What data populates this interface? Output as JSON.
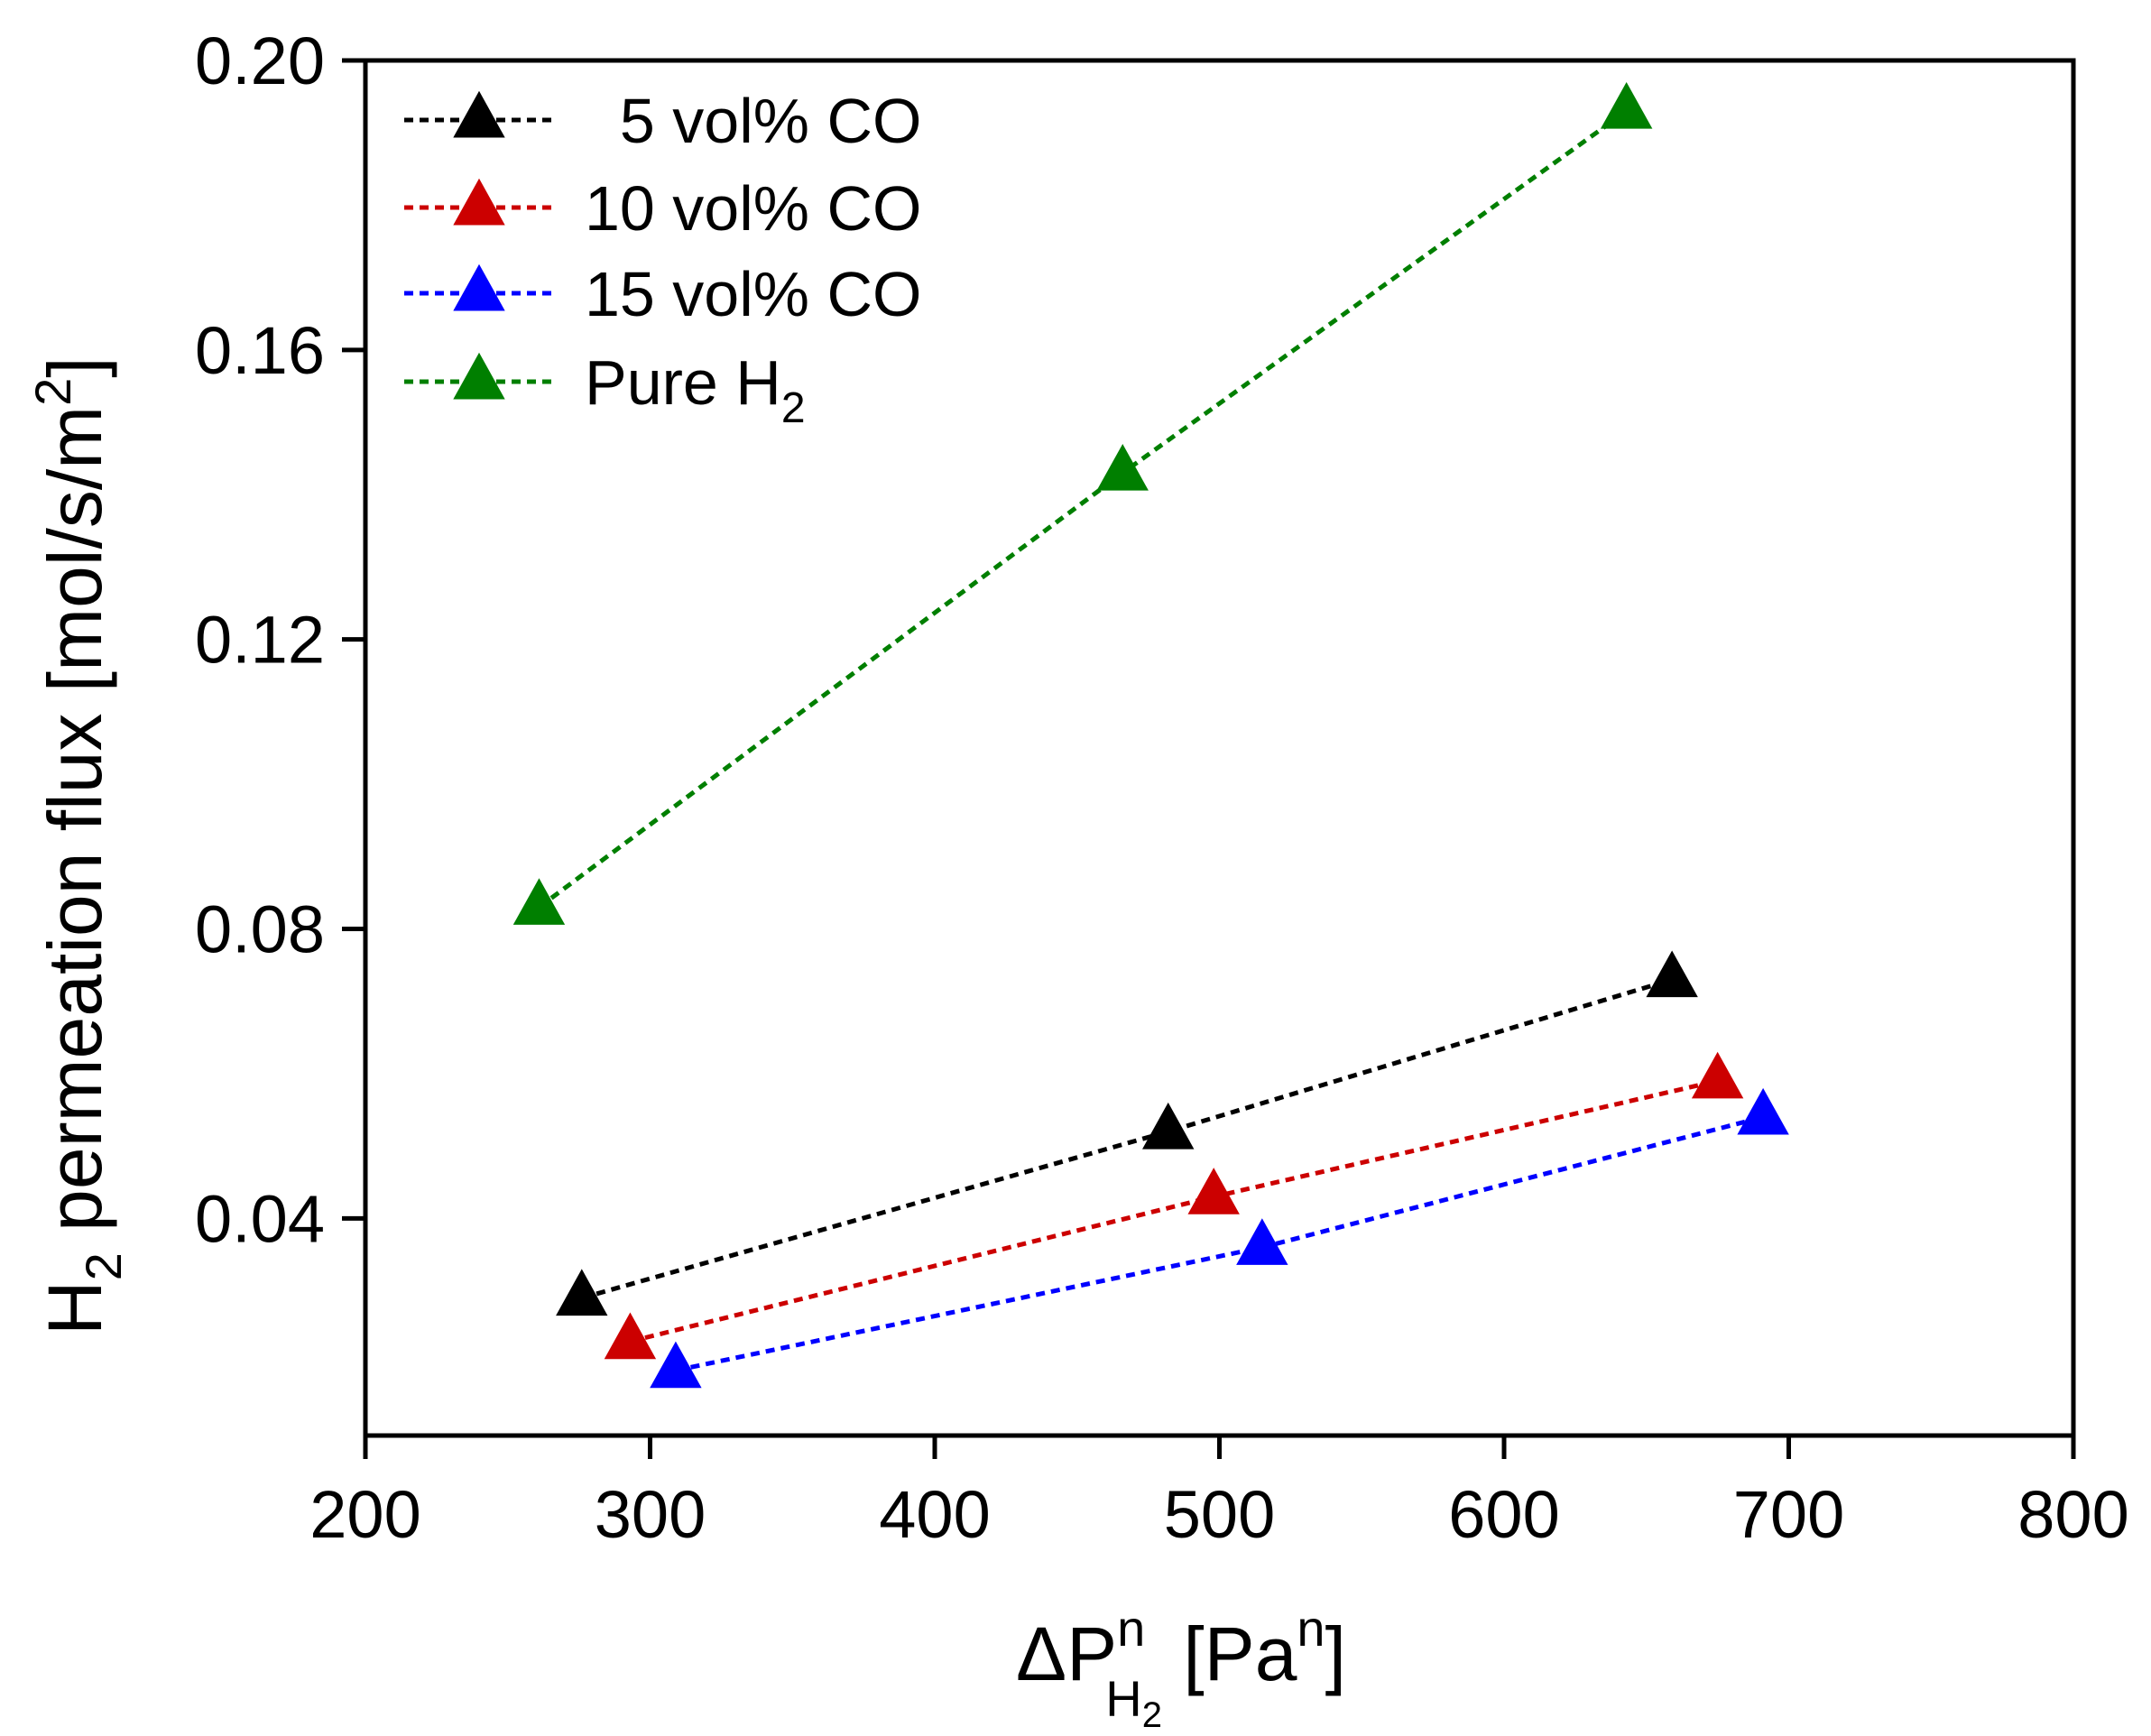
{
  "chart_data": {
    "type": "line",
    "title": "",
    "xlabel": {
      "prefix": "ΔP",
      "sup": "n",
      "sub": "H",
      "sub_sub": "2",
      "unit_open": " [Pa",
      "unit_sup": "n",
      "unit_close": "]"
    },
    "ylabel": {
      "prefix": "H",
      "sub": "2",
      "main": " permeation flux [mol/s/m",
      "sup": "2",
      "close": "]"
    },
    "xlim": [
      200,
      800
    ],
    "ylim": [
      0.01,
      0.2
    ],
    "x_ticks": [
      200,
      300,
      400,
      500,
      600,
      700,
      800
    ],
    "x_tick_labels": [
      "200",
      "300",
      "400",
      "500",
      "600",
      "700",
      "800"
    ],
    "y_ticks": [
      0.04,
      0.08,
      0.12,
      0.16,
      0.2
    ],
    "y_tick_labels": [
      "0.04",
      "0.08",
      "0.12",
      "0.16",
      "0.20"
    ],
    "grid": false,
    "legend_position": "top-left",
    "series": [
      {
        "name": "5 vol% CO",
        "label": "  5 vol% CO",
        "color": "#000000",
        "marker": "triangle",
        "line_style": "dotted",
        "x": [
          276,
          482,
          659
        ],
        "y": [
          0.029,
          0.052,
          0.073
        ]
      },
      {
        "name": "10 vol% CO",
        "label": "10 vol% CO",
        "color": "#cc0000",
        "marker": "triangle",
        "line_style": "dotted",
        "x": [
          293,
          498,
          675
        ],
        "y": [
          0.023,
          0.043,
          0.059
        ]
      },
      {
        "name": "15 vol% CO",
        "label": "15 vol% CO",
        "color": "#0000ff",
        "marker": "triangle",
        "line_style": "dotted",
        "x": [
          309,
          515,
          691
        ],
        "y": [
          0.019,
          0.036,
          0.054
        ]
      },
      {
        "name": "Pure H2",
        "label": "Pure H",
        "label_sub": "2",
        "color": "#007f00",
        "marker": "triangle",
        "line_style": "dotted",
        "x": [
          261,
          466,
          643
        ],
        "y": [
          0.083,
          0.143,
          0.193
        ]
      }
    ]
  }
}
